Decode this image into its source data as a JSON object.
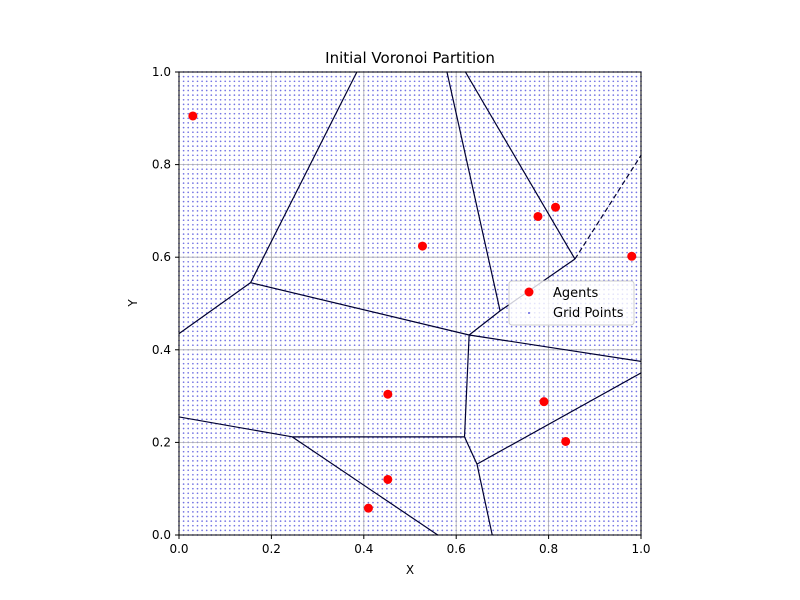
{
  "chart_data": {
    "type": "scatter",
    "title": "Initial Voronoi Partition",
    "xlabel": "X",
    "ylabel": "Y",
    "xlim": [
      0,
      1
    ],
    "ylim": [
      0,
      1
    ],
    "x_ticks": [
      "0.0",
      "0.2",
      "0.4",
      "0.6",
      "0.8",
      "1.0"
    ],
    "y_ticks": [
      "0.0",
      "0.2",
      "0.4",
      "0.6",
      "0.8",
      "1.0"
    ],
    "grid": true,
    "legend_position": "center-right",
    "series": [
      {
        "name": "Agents",
        "kind": "scatter",
        "color": "#ff0000",
        "points": [
          [
            0.03,
            0.905
          ],
          [
            0.527,
            0.624
          ],
          [
            0.777,
            0.688
          ],
          [
            0.815,
            0.708
          ],
          [
            0.98,
            0.602
          ],
          [
            0.452,
            0.304
          ],
          [
            0.79,
            0.288
          ],
          [
            0.837,
            0.202
          ],
          [
            0.452,
            0.12
          ],
          [
            0.41,
            0.058
          ]
        ]
      },
      {
        "name": "Grid Points",
        "kind": "grid",
        "color": "#0000cc",
        "grid_step": 0.01,
        "range": [
          0,
          1
        ]
      }
    ],
    "voronoi_edges": {
      "color": "#000033",
      "solid": [
        [
          [
            0.0,
            0.435
          ],
          [
            0.155,
            0.545
          ]
        ],
        [
          [
            0.155,
            0.545
          ],
          [
            0.385,
            1.0
          ]
        ],
        [
          [
            0.155,
            0.545
          ],
          [
            0.628,
            0.432
          ]
        ],
        [
          [
            0.58,
            1.0
          ],
          [
            0.695,
            0.484
          ]
        ],
        [
          [
            0.62,
            1.0
          ],
          [
            0.857,
            0.596
          ]
        ],
        [
          [
            0.695,
            0.484
          ],
          [
            0.857,
            0.596
          ]
        ],
        [
          [
            0.628,
            0.432
          ],
          [
            0.695,
            0.484
          ]
        ],
        [
          [
            0.628,
            0.432
          ],
          [
            0.618,
            0.212
          ]
        ],
        [
          [
            0.0,
            0.255
          ],
          [
            0.245,
            0.212
          ]
        ],
        [
          [
            0.245,
            0.212
          ],
          [
            0.618,
            0.212
          ]
        ],
        [
          [
            0.245,
            0.212
          ],
          [
            0.56,
            0.0
          ]
        ],
        [
          [
            0.618,
            0.212
          ],
          [
            0.645,
            0.153
          ]
        ],
        [
          [
            0.645,
            0.153
          ],
          [
            0.678,
            0.0
          ]
        ],
        [
          [
            0.645,
            0.153
          ],
          [
            1.0,
            0.35
          ]
        ],
        [
          [
            0.628,
            0.432
          ],
          [
            1.0,
            0.375
          ]
        ]
      ],
      "dashed": [
        [
          [
            0.857,
            0.596
          ],
          [
            1.0,
            0.82
          ]
        ]
      ]
    }
  }
}
